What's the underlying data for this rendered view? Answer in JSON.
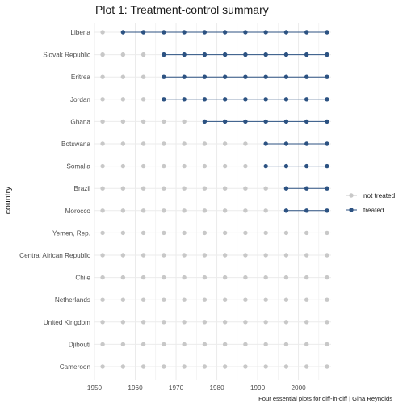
{
  "title": "Plot 1: Treatment-control summary",
  "caption": "Four essential plots for diff-in-diff | Gina Reynolds",
  "colors": {
    "treated": "#2c5282",
    "not_treated": "#c8c8c8",
    "grid": "#ebebeb"
  },
  "chart_data": {
    "type": "scatter",
    "title": "Plot 1: Treatment-control summary",
    "ylabel": "country",
    "xlabel": "",
    "xlim": [
      1950,
      2008
    ],
    "xticks": [
      1950,
      1960,
      1970,
      1980,
      1990,
      2000
    ],
    "years": [
      1952,
      1957,
      1962,
      1967,
      1972,
      1977,
      1982,
      1987,
      1992,
      1997,
      2002,
      2007
    ],
    "grid": true,
    "legend_position": "right",
    "legend": [
      "not treated",
      "treated"
    ],
    "countries": [
      {
        "name": "Liberia",
        "treated_from": 1957
      },
      {
        "name": "Slovak Republic",
        "treated_from": 1967
      },
      {
        "name": "Eritrea",
        "treated_from": 1967
      },
      {
        "name": "Jordan",
        "treated_from": 1967
      },
      {
        "name": "Ghana",
        "treated_from": 1977
      },
      {
        "name": "Botswana",
        "treated_from": 1992
      },
      {
        "name": "Somalia",
        "treated_from": 1992
      },
      {
        "name": "Brazil",
        "treated_from": 1997
      },
      {
        "name": "Morocco",
        "treated_from": 1997
      },
      {
        "name": "Yemen, Rep.",
        "treated_from": null
      },
      {
        "name": "Central African Republic",
        "treated_from": null
      },
      {
        "name": "Chile",
        "treated_from": null
      },
      {
        "name": "Netherlands",
        "treated_from": null
      },
      {
        "name": "United Kingdom",
        "treated_from": null
      },
      {
        "name": "Djibouti",
        "treated_from": null
      },
      {
        "name": "Cameroon",
        "treated_from": null
      }
    ]
  }
}
